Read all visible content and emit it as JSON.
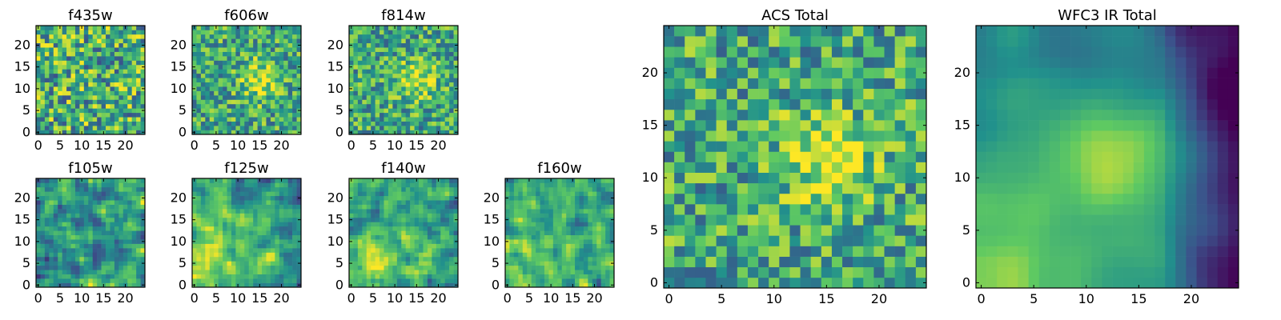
{
  "figure": {
    "colormap": [
      "#440154",
      "#3b528b",
      "#21918c",
      "#5ec962",
      "#fde725"
    ]
  },
  "chart_data": [
    {
      "type": "heatmap",
      "title": "f435w",
      "xlabel": "",
      "ylabel": "",
      "grid_size": 25,
      "xlim": [
        0,
        24
      ],
      "ylim": [
        0,
        24
      ],
      "xticks": [
        0,
        5,
        10,
        15,
        20
      ],
      "yticks": [
        0,
        5,
        10,
        15,
        20
      ],
      "pattern": "uniform-noise",
      "seed": 11
    },
    {
      "type": "heatmap",
      "title": "f606w",
      "xlabel": "",
      "ylabel": "",
      "grid_size": 25,
      "xlim": [
        0,
        24
      ],
      "ylim": [
        0,
        24
      ],
      "xticks": [
        0,
        5,
        10,
        15,
        20
      ],
      "yticks": [
        0,
        5,
        10,
        15,
        20
      ],
      "pattern": "noise-with-central-bright-spot",
      "seed": 23
    },
    {
      "type": "heatmap",
      "title": "f814w",
      "xlabel": "",
      "ylabel": "",
      "grid_size": 25,
      "xlim": [
        0,
        24
      ],
      "ylim": [
        0,
        24
      ],
      "xticks": [
        0,
        5,
        10,
        15,
        20
      ],
      "yticks": [
        0,
        5,
        10,
        15,
        20
      ],
      "pattern": "noise-with-central-bright-spot",
      "seed": 37
    },
    {
      "type": "heatmap",
      "title": "f105w",
      "xlabel": "",
      "ylabel": "",
      "grid_size": 25,
      "xlim": [
        0,
        24
      ],
      "ylim": [
        0,
        24
      ],
      "xticks": [
        0,
        5,
        10,
        15,
        20
      ],
      "yticks": [
        0,
        5,
        10,
        15,
        20
      ],
      "pattern": "smooth-noise",
      "seed": 41
    },
    {
      "type": "heatmap",
      "title": "f125w",
      "xlabel": "",
      "ylabel": "",
      "grid_size": 25,
      "xlim": [
        0,
        24
      ],
      "ylim": [
        0,
        24
      ],
      "xticks": [
        0,
        5,
        10,
        15,
        20
      ],
      "yticks": [
        0,
        5,
        10,
        15,
        20
      ],
      "pattern": "smooth-noise-bright-lower-left",
      "seed": 53
    },
    {
      "type": "heatmap",
      "title": "f140w",
      "xlabel": "",
      "ylabel": "",
      "grid_size": 25,
      "xlim": [
        0,
        24
      ],
      "ylim": [
        0,
        24
      ],
      "xticks": [
        0,
        5,
        10,
        15,
        20
      ],
      "yticks": [
        0,
        5,
        10,
        15,
        20
      ],
      "pattern": "smooth-noise-bright-lower-left",
      "seed": 67
    },
    {
      "type": "heatmap",
      "title": "f160w",
      "xlabel": "",
      "ylabel": "",
      "grid_size": 25,
      "xlim": [
        0,
        24
      ],
      "ylim": [
        0,
        24
      ],
      "xticks": [
        0,
        5,
        10,
        15,
        20
      ],
      "yticks": [
        0,
        5,
        10,
        15,
        20
      ],
      "pattern": "smooth-noise-bright-lower-left",
      "seed": 79
    },
    {
      "type": "heatmap",
      "title": "ACS Total",
      "xlabel": "",
      "ylabel": "",
      "grid_size": 25,
      "xlim": [
        0,
        24
      ],
      "ylim": [
        0,
        24
      ],
      "xticks": [
        0,
        5,
        10,
        15,
        20
      ],
      "yticks": [
        0,
        5,
        10,
        15,
        20
      ],
      "pattern": "noise-with-central-bright-spot",
      "seed": 97
    },
    {
      "type": "heatmap",
      "title": "WFC3 IR Total",
      "xlabel": "",
      "ylabel": "",
      "grid_size": 25,
      "xlim": [
        0,
        24
      ],
      "ylim": [
        0,
        24
      ],
      "xticks": [
        0,
        5,
        10,
        15,
        20
      ],
      "yticks": [
        0,
        5,
        10,
        15,
        20
      ],
      "pattern": "gradient-bright-lower-left-dark-right",
      "seed": 113
    }
  ]
}
